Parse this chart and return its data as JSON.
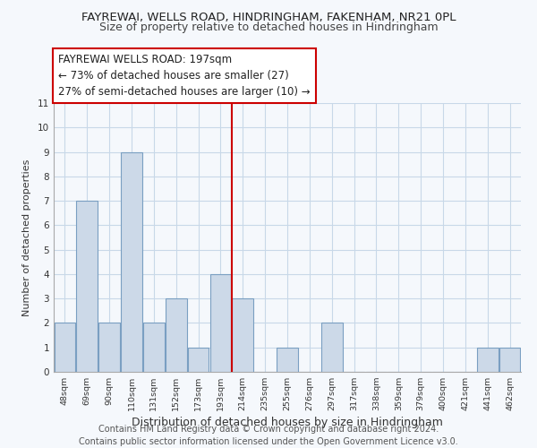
{
  "title": "FAYREWAI, WELLS ROAD, HINDRINGHAM, FAKENHAM, NR21 0PL",
  "subtitle": "Size of property relative to detached houses in Hindringham",
  "xlabel": "Distribution of detached houses by size in Hindringham",
  "ylabel": "Number of detached properties",
  "bin_labels": [
    "48sqm",
    "69sqm",
    "90sqm",
    "110sqm",
    "131sqm",
    "152sqm",
    "173sqm",
    "193sqm",
    "214sqm",
    "235sqm",
    "255sqm",
    "276sqm",
    "297sqm",
    "317sqm",
    "338sqm",
    "359sqm",
    "379sqm",
    "400sqm",
    "421sqm",
    "441sqm",
    "462sqm"
  ],
  "bar_heights": [
    2,
    7,
    2,
    9,
    2,
    3,
    1,
    4,
    3,
    0,
    1,
    0,
    2,
    0,
    0,
    0,
    0,
    0,
    0,
    1,
    1
  ],
  "bar_color": "#ccd9e8",
  "bar_edge_color": "#7a9fc2",
  "vline_color": "#cc0000",
  "annotation_line1": "FAYREWAI WELLS ROAD: 197sqm",
  "annotation_line2": "← 73% of detached houses are smaller (27)",
  "annotation_line3": "27% of semi-detached houses are larger (10) →",
  "ylim": [
    0,
    11
  ],
  "yticks": [
    0,
    1,
    2,
    3,
    4,
    5,
    6,
    7,
    8,
    9,
    10,
    11
  ],
  "footer_text": "Contains HM Land Registry data © Crown copyright and database right 2024.\nContains public sector information licensed under the Open Government Licence v3.0.",
  "title_fontsize": 9.5,
  "subtitle_fontsize": 9,
  "xlabel_fontsize": 9,
  "ylabel_fontsize": 8,
  "annotation_fontsize": 8.5,
  "footer_fontsize": 7,
  "background_color": "#f5f8fc",
  "grid_color": "#c8d8e8"
}
